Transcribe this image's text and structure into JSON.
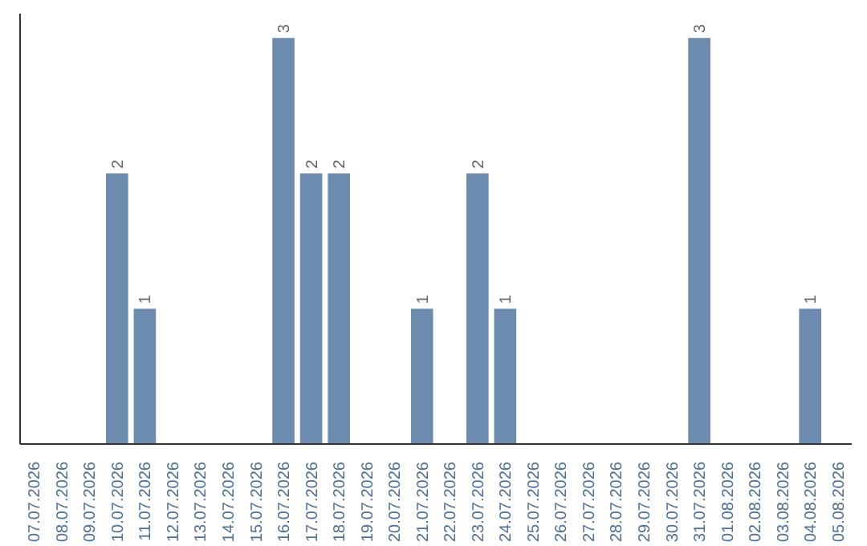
{
  "chart_data": {
    "type": "bar",
    "categories": [
      "07.07.2026",
      "08.07.2026",
      "09.07.2026",
      "10.07.2026",
      "11.07.2026",
      "12.07.2026",
      "13.07.2026",
      "14.07.2026",
      "15.07.2026",
      "16.07.2026",
      "17.07.2026",
      "18.07.2026",
      "19.07.2026",
      "20.07.2026",
      "21.07.2026",
      "22.07.2026",
      "23.07.2026",
      "24.07.2026",
      "25.07.2026",
      "26.07.2026",
      "27.07.2026",
      "28.07.2026",
      "29.07.2026",
      "30.07.2026",
      "31.07.2026",
      "01.08.2026",
      "02.08.2026",
      "03.08.2026",
      "04.08.2026",
      "05.08.2026"
    ],
    "values": [
      0,
      0,
      0,
      2,
      1,
      0,
      0,
      0,
      0,
      3,
      2,
      2,
      0,
      0,
      1,
      0,
      2,
      1,
      0,
      0,
      0,
      0,
      0,
      0,
      3,
      0,
      0,
      0,
      1,
      0
    ],
    "value_labels": [
      null,
      null,
      null,
      "2",
      "1",
      null,
      null,
      null,
      null,
      "3",
      "2",
      "2",
      null,
      null,
      "1",
      null,
      "2",
      "1",
      null,
      null,
      null,
      null,
      null,
      null,
      "3",
      null,
      null,
      null,
      "1",
      null
    ],
    "color": "#6b8cae",
    "grid": false,
    "tick_labels": "x"
  }
}
